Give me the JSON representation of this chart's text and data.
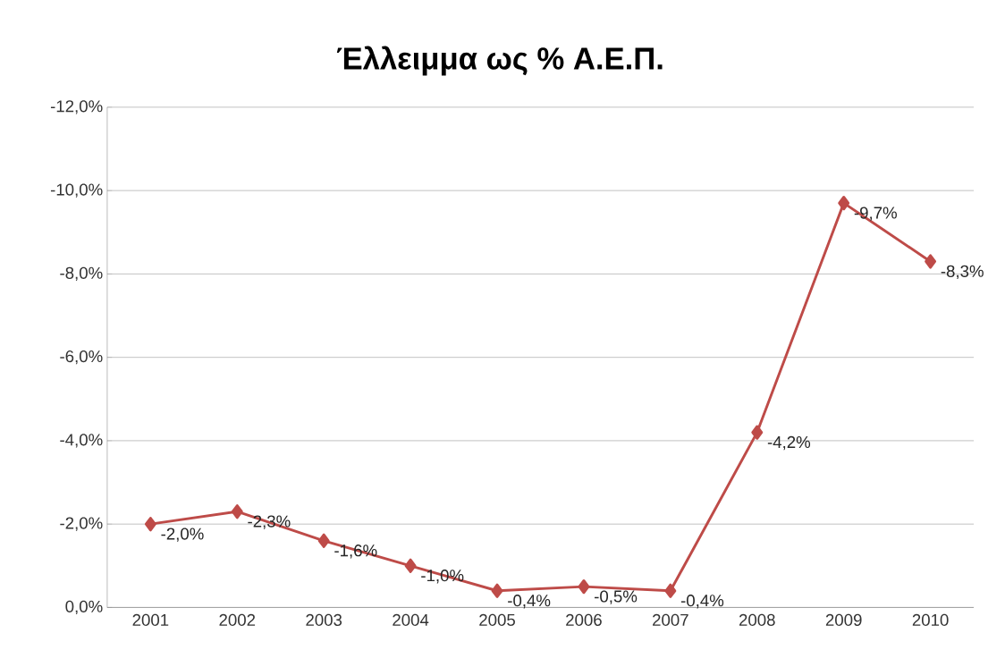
{
  "chart_data": {
    "type": "line",
    "title": "Έλλειμμα ως % Α.Ε.Π.",
    "categories": [
      "2001",
      "2002",
      "2003",
      "2004",
      "2005",
      "2006",
      "2007",
      "2008",
      "2009",
      "2010"
    ],
    "series": [
      {
        "color": "#be4b48",
        "values": [
          -2.0,
          -2.3,
          -1.6,
          -1.0,
          -0.4,
          -0.5,
          -0.4,
          -4.2,
          -9.7,
          -8.3
        ],
        "value_labels": [
          "-2,0%",
          "-2,3%",
          "-1,6%",
          "-1,0%",
          "-0,4%",
          "-0,5%",
          "-0,4%",
          "-4,2%",
          "-9,7%",
          "-8,3%"
        ]
      }
    ],
    "ylim": [
      0,
      -12
    ],
    "yticks": [
      {
        "value": 0,
        "label": "0,0%"
      },
      {
        "value": -2,
        "label": "-2,0%"
      },
      {
        "value": -4,
        "label": "-4,0%"
      },
      {
        "value": -6,
        "label": "-6,0%"
      },
      {
        "value": -8,
        "label": "-8,0%"
      },
      {
        "value": -10,
        "label": "-10,0%"
      },
      {
        "value": -12,
        "label": "-12,0%"
      }
    ],
    "grid": "y",
    "marker": "diamond",
    "line_style": "solid"
  }
}
